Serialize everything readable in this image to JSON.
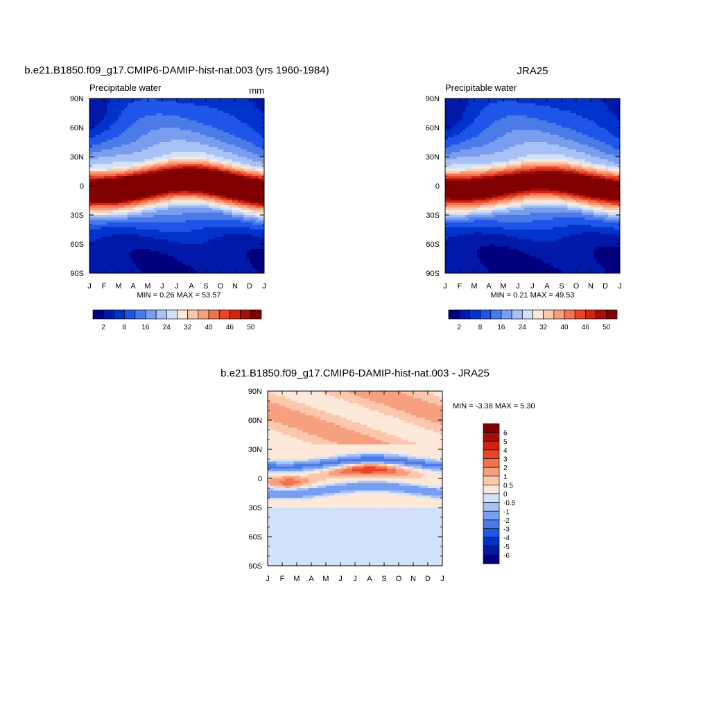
{
  "palettes": {
    "main": [
      "#00007f",
      "#0019a8",
      "#0033cc",
      "#1f55e8",
      "#4a7be6",
      "#7a9df0",
      "#a9c2f5",
      "#d3e2fb",
      "#fde9d9",
      "#fbc8ae",
      "#f7a07f",
      "#f2734f",
      "#e8452a",
      "#cf2414",
      "#a80d08",
      "#800000"
    ],
    "diff": [
      "#00007f",
      "#0019a8",
      "#0033cc",
      "#1f55e8",
      "#4a7be6",
      "#7a9df0",
      "#a9c2f5",
      "#d3e2fb",
      "#fde9d9",
      "#fbc8ae",
      "#f7a07f",
      "#f2734f",
      "#e8452a",
      "#cf2414",
      "#a80d08",
      "#800000"
    ]
  },
  "chart_data": [
    {
      "type": "heatmap",
      "id": "model",
      "title": "b.e21.B1850.f09_g17.CMIP6-DAMIP-hist-nat.003 (yrs 1960-1984)",
      "subtitle_left": "Precipitable water",
      "subtitle_right": "mm",
      "x_ticks": [
        "J",
        "F",
        "M",
        "A",
        "M",
        "J",
        "J",
        "A",
        "S",
        "O",
        "N",
        "D",
        "J"
      ],
      "y_ticks": [
        "90N",
        "60N",
        "30N",
        "0",
        "30S",
        "60S",
        "90S"
      ],
      "ylim": [
        -90,
        90
      ],
      "field": {
        "peak": 52.5,
        "center_lat_amp": 6,
        "center_lat_mean": 0,
        "width": 13,
        "south_min": 2,
        "north_min": 3,
        "pinch_lat": 70
      },
      "stats_text": "MIN =   0.26 MAX =  53.57",
      "min": 0.26,
      "max": 53.57,
      "colorbar": {
        "levels": [
          2,
          5,
          8,
          12,
          16,
          20,
          24,
          28,
          32,
          36,
          40,
          43,
          46,
          48,
          50
        ],
        "labels": [
          "2",
          "8",
          "16",
          "24",
          "32",
          "40",
          "46",
          "50"
        ]
      }
    },
    {
      "type": "heatmap",
      "id": "obs",
      "title": "JRA25",
      "subtitle_left": "Precipitable water",
      "x_ticks": [
        "J",
        "F",
        "M",
        "A",
        "M",
        "J",
        "J",
        "A",
        "S",
        "O",
        "N",
        "D",
        "J"
      ],
      "y_ticks": [
        "90N",
        "60N",
        "30N",
        "0",
        "30S",
        "60S",
        "90S"
      ],
      "ylim": [
        -90,
        90
      ],
      "field": {
        "peak": 49,
        "center_lat_amp": 5,
        "center_lat_mean": 0,
        "width": 13,
        "south_min": 1.5,
        "north_min": 2.5,
        "pinch_lat": 70
      },
      "stats_text": "MIN =   0.21 MAX =  49.53",
      "min": 0.21,
      "max": 49.53,
      "colorbar": {
        "levels": [
          2,
          5,
          8,
          12,
          16,
          20,
          24,
          28,
          32,
          36,
          40,
          43,
          46,
          48,
          50
        ],
        "labels": [
          "2",
          "8",
          "16",
          "24",
          "32",
          "40",
          "46",
          "50"
        ]
      }
    },
    {
      "type": "heatmap",
      "id": "diff",
      "title": "b.e21.B1850.f09_g17.CMIP6-DAMIP-hist-nat.003 - JRA25",
      "x_ticks": [
        "J",
        "F",
        "M",
        "A",
        "M",
        "J",
        "J",
        "A",
        "S",
        "O",
        "N",
        "D",
        "J"
      ],
      "y_ticks": [
        "90N",
        "60N",
        "30N",
        "0",
        "30S",
        "60S",
        "90S"
      ],
      "ylim": [
        -90,
        90
      ],
      "stats_text": "MIN =  -3.38 MAX =   5.30",
      "min": -3.38,
      "max": 5.3,
      "colorbar": {
        "levels": [
          -6,
          -5,
          -4,
          -3,
          -2,
          -1,
          -0.5,
          0,
          0.5,
          1,
          2,
          3,
          4,
          5,
          6
        ],
        "labels": [
          "6",
          "5",
          "4",
          "3",
          "2",
          "1",
          "0.5",
          "0",
          "-0.5",
          "-1",
          "-2",
          "-3",
          "-4",
          "-5",
          "-6"
        ]
      }
    }
  ]
}
